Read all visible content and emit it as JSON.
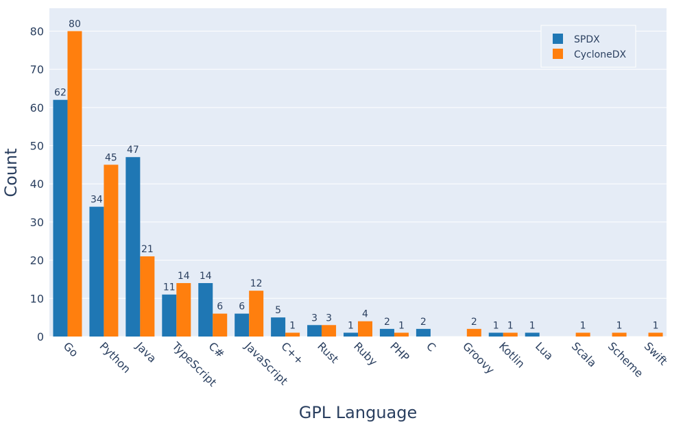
{
  "chart_data": {
    "type": "bar",
    "xlabel": "GPL Language",
    "ylabel": "Count",
    "categories": [
      "Go",
      "Python",
      "Java",
      "TypeScript",
      "C#",
      "JavaScript",
      "C++",
      "Rust",
      "Ruby",
      "PHP",
      "C",
      "Groovy",
      "Kotlin",
      "Lua",
      "Scala",
      "Scheme",
      "Swift"
    ],
    "series": [
      {
        "name": "SPDX",
        "color": "#1f77b4",
        "values": [
          62,
          34,
          47,
          11,
          14,
          6,
          5,
          3,
          1,
          2,
          2,
          null,
          1,
          1,
          null,
          null,
          null
        ]
      },
      {
        "name": "CycloneDX",
        "color": "#ff7f0e",
        "values": [
          80,
          45,
          21,
          14,
          6,
          12,
          1,
          3,
          4,
          1,
          null,
          2,
          1,
          null,
          1,
          1,
          1
        ]
      }
    ],
    "ylim": [
      0,
      86
    ],
    "yticks": [
      0,
      10,
      20,
      30,
      40,
      50,
      60,
      70,
      80
    ],
    "grid": true,
    "legend_position": "top-right",
    "colors": {
      "plot_bg": "#e5ecf6",
      "grid": "#ffffff",
      "text": "#2a3f5f"
    }
  }
}
